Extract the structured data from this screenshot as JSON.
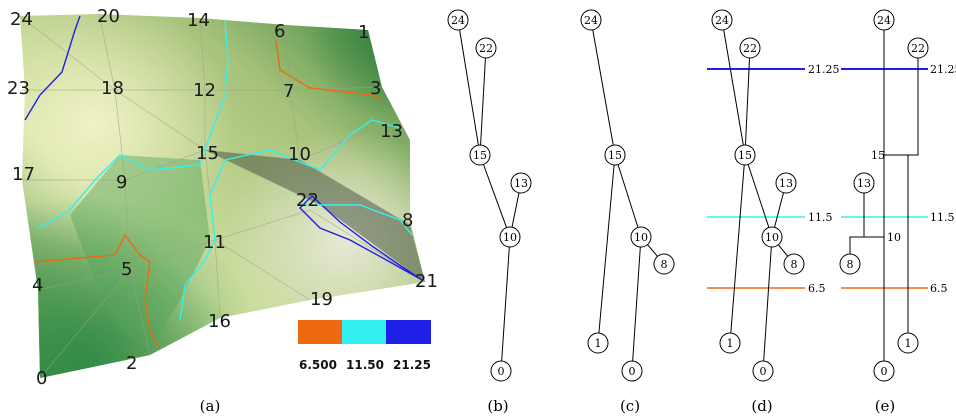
{
  "colors": {
    "low": "#ee6a10",
    "mid": "#33f0f0",
    "high": "#1f1fe8",
    "edge": "#000000"
  },
  "levels": [
    {
      "value": 6.5,
      "legend_label": "6.500",
      "line_label": "6.5",
      "color": "#ee6a10"
    },
    {
      "value": 11.5,
      "legend_label": "11.50",
      "line_label": "11.5",
      "color": "#33f0f0"
    },
    {
      "value": 21.25,
      "legend_label": "21.25",
      "line_label": "21.25",
      "color": "#1f1fe8"
    }
  ],
  "mesh_vertex_labels": [
    "0",
    "1",
    "2",
    "3",
    "5",
    "4",
    "6",
    "7",
    "8",
    "9",
    "10",
    "11",
    "12",
    "13",
    "14",
    "15",
    "16",
    "17",
    "18",
    "19",
    "20",
    "21",
    "22",
    "23",
    "24"
  ],
  "panels": [
    {
      "id": "a",
      "caption": "(a)"
    },
    {
      "id": "b",
      "caption": "(b)",
      "nodes": [
        "24",
        "22",
        "15",
        "13",
        "10",
        "0"
      ],
      "edges": [
        [
          "24",
          "15"
        ],
        [
          "22",
          "15"
        ],
        [
          "15",
          "10"
        ],
        [
          "13",
          "10"
        ],
        [
          "10",
          "0"
        ]
      ]
    },
    {
      "id": "c",
      "caption": "(c)",
      "nodes": [
        "24",
        "15",
        "10",
        "8",
        "1",
        "0"
      ],
      "edges": [
        [
          "24",
          "15"
        ],
        [
          "15",
          "1"
        ],
        [
          "15",
          "10"
        ],
        [
          "10",
          "8"
        ],
        [
          "10",
          "0"
        ]
      ]
    },
    {
      "id": "d",
      "caption": "(d)",
      "nodes": [
        "24",
        "22",
        "15",
        "13",
        "10",
        "8",
        "1",
        "0"
      ],
      "edges": [
        [
          "24",
          "15"
        ],
        [
          "22",
          "15"
        ],
        [
          "15",
          "1"
        ],
        [
          "15",
          "10"
        ],
        [
          "13",
          "10"
        ],
        [
          "10",
          "8"
        ],
        [
          "10",
          "0"
        ]
      ]
    },
    {
      "id": "e",
      "caption": "(e)",
      "nodes": [
        "24",
        "22",
        "15",
        "13",
        "10",
        "8",
        "0",
        "1"
      ]
    }
  ]
}
